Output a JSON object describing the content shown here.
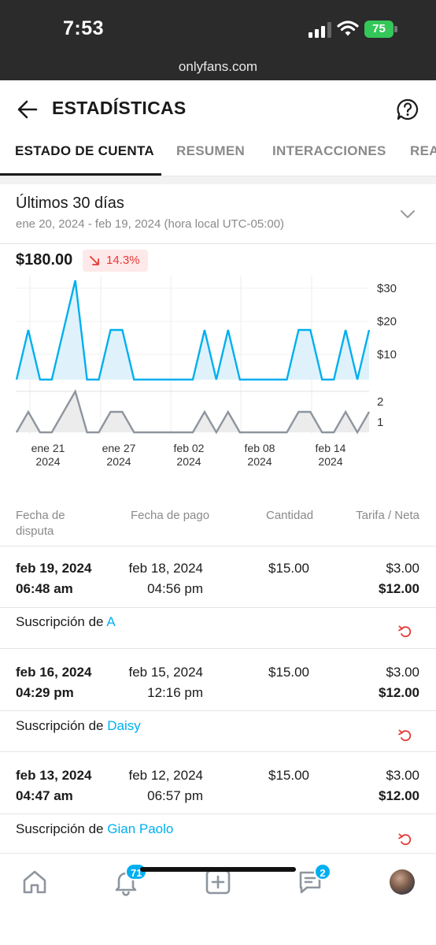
{
  "status_bar": {
    "time": "7:53",
    "battery": "75",
    "url": "onlyfans.com"
  },
  "header": {
    "title": "ESTADÍSTICAS",
    "back_icon": "arrow-left-icon",
    "help_icon": "question-circle-icon"
  },
  "tabs": [
    {
      "label": "ESTADO DE CUENTA",
      "active": true
    },
    {
      "label": "RESUMEN",
      "active": false
    },
    {
      "label": "INTERACCIONES",
      "active": false
    },
    {
      "label": "REA",
      "active": false
    }
  ],
  "period": {
    "title": "Últimos 30 días",
    "range": "ene 20, 2024 - feb 19, 2024 (hora local UTC-05:00)"
  },
  "summary": {
    "total": "$180.00",
    "change": "14.3%",
    "change_direction": "down"
  },
  "chart_data": {
    "type": "area",
    "x": [
      "ene 20",
      "ene 21",
      "ene 22",
      "ene 23",
      "ene 24",
      "ene 25",
      "ene 26",
      "ene 27",
      "ene 28",
      "ene 29",
      "ene 30",
      "ene 31",
      "feb 01",
      "feb 02",
      "feb 03",
      "feb 04",
      "feb 05",
      "feb 06",
      "feb 07",
      "feb 08",
      "feb 09",
      "feb 10",
      "feb 11",
      "feb 12",
      "feb 13",
      "feb 14",
      "feb 15",
      "feb 16",
      "feb 17",
      "feb 18",
      "feb 19"
    ],
    "series": [
      {
        "values": [
          0,
          15,
          0,
          0,
          15,
          30,
          0,
          0,
          15,
          15,
          0,
          0,
          0,
          0,
          0,
          0,
          15,
          0,
          15,
          0,
          0,
          0,
          0,
          0,
          15,
          15,
          0,
          0,
          15,
          0,
          15
        ]
      },
      {
        "values": [
          0,
          1,
          0,
          0,
          1,
          2,
          0,
          0,
          1,
          1,
          0,
          0,
          0,
          0,
          0,
          0,
          1,
          0,
          1,
          0,
          0,
          0,
          0,
          0,
          1,
          1,
          0,
          0,
          1,
          0,
          1
        ]
      }
    ],
    "yticks_top": [
      "$30",
      "$20",
      "$10"
    ],
    "yticks_bottom": [
      "2",
      "1"
    ],
    "xticks": [
      {
        "label": "ene 21",
        "year": "2024"
      },
      {
        "label": "ene 27",
        "year": "2024"
      },
      {
        "label": "feb 02",
        "year": "2024"
      },
      {
        "label": "feb 08",
        "year": "2024"
      },
      {
        "label": "feb 14",
        "year": "2024"
      }
    ],
    "colors": {
      "earnings": "#00aff0",
      "earnings_fill": "#dff2fb",
      "count": "#8e959e",
      "count_fill": "#ececec"
    }
  },
  "table": {
    "headers": {
      "dispute_date": "Fecha de\ndisputa",
      "payment_date": "Fecha de pago",
      "amount": "Cantidad",
      "fee_net": "Tarifa / Neta"
    },
    "rows": [
      {
        "dispute_date": "feb 19, 2024",
        "dispute_time": "06:48 am",
        "payment_date": "feb 18, 2024",
        "payment_time": "04:56 pm",
        "amount": "$15.00",
        "fee": "$3.00",
        "net": "$12.00",
        "prefix": "Suscripción de",
        "user": "A"
      },
      {
        "dispute_date": "feb 16, 2024",
        "dispute_time": "04:29 pm",
        "payment_date": "feb 15, 2024",
        "payment_time": "12:16 pm",
        "amount": "$15.00",
        "fee": "$3.00",
        "net": "$12.00",
        "prefix": "Suscripción de",
        "user": "Daisy"
      },
      {
        "dispute_date": "feb 13, 2024",
        "dispute_time": "04:47 am",
        "payment_date": "feb 12, 2024",
        "payment_time": "06:57 pm",
        "amount": "$15.00",
        "fee": "$3.00",
        "net": "$12.00",
        "prefix": "Suscripción de",
        "user": "Gian Paolo"
      }
    ]
  },
  "bottom_nav": {
    "notifications_badge": "71",
    "messages_badge": "2",
    "icons": [
      "home-icon",
      "bell-icon",
      "plus-square-icon",
      "chat-icon",
      "avatar"
    ]
  }
}
